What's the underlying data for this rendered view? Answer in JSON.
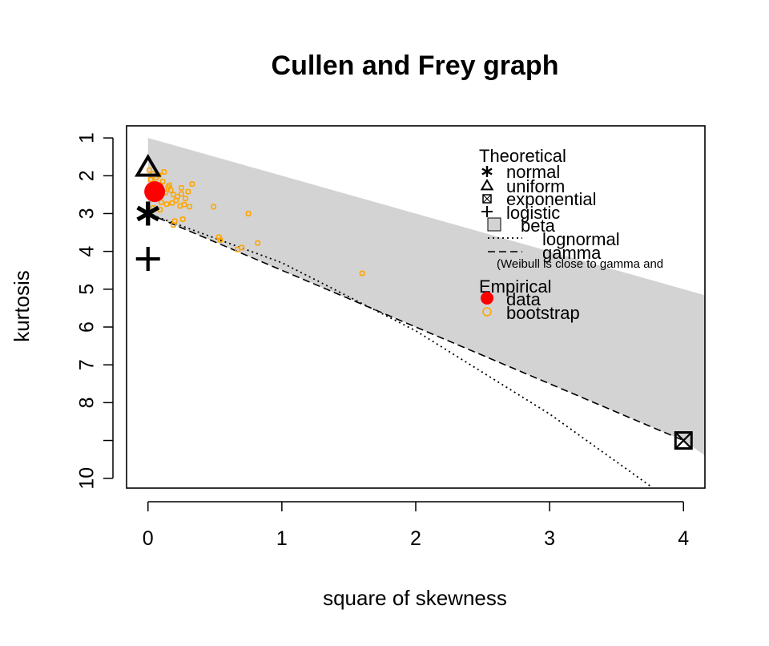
{
  "chart_data": {
    "type": "scatter",
    "title": "Cullen and Frey graph",
    "xlabel": "square of skewness",
    "ylabel": "kurtosis",
    "xlim": [
      -0.16,
      4.16
    ],
    "ylim": [
      10.26,
      0.68
    ],
    "y_axis_reversed": true,
    "x_ticks": [
      0,
      1,
      2,
      3,
      4
    ],
    "y_ticks": [
      1,
      2,
      3,
      4,
      5,
      6,
      7,
      8,
      9,
      10
    ],
    "y_tick_labels": [
      "1",
      "2",
      "3",
      "4",
      "5",
      "6",
      "7",
      "8",
      "",
      "10"
    ],
    "beta_region": {
      "color": "#d3d3d3",
      "upper_boundary": [
        [
          0,
          1
        ],
        [
          4.16,
          5.16
        ]
      ],
      "lower_boundary": [
        [
          0,
          3
        ],
        [
          4,
          9
        ],
        [
          4.16,
          9.4
        ]
      ]
    },
    "gamma_line": {
      "style": "dashed",
      "points": [
        [
          0,
          3
        ],
        [
          4,
          9
        ]
      ]
    },
    "lognormal_line": {
      "style": "dotted",
      "points": [
        [
          0,
          3
        ],
        [
          1,
          4.3
        ],
        [
          2,
          6.1
        ],
        [
          3,
          8.3
        ],
        [
          3.75,
          10.2
        ]
      ]
    },
    "theoretical_points": [
      {
        "name": "normal",
        "x": 0,
        "y": 3,
        "marker": "asterisk"
      },
      {
        "name": "uniform",
        "x": 0,
        "y": 1.8,
        "marker": "triangle"
      },
      {
        "name": "exponential",
        "x": 4,
        "y": 9,
        "marker": "boxed-x"
      },
      {
        "name": "logistic",
        "x": 0,
        "y": 4.2,
        "marker": "plus"
      }
    ],
    "observation": {
      "name": "data",
      "x": 0.05,
      "y": 2.42,
      "color": "#ff0000"
    },
    "bootstrap": {
      "name": "bootstrap",
      "color": "#ffa500",
      "points": [
        [
          0.01,
          1.85
        ],
        [
          0.04,
          1.95
        ],
        [
          0.06,
          2.05
        ],
        [
          0.08,
          1.98
        ],
        [
          0.12,
          1.9
        ],
        [
          0.02,
          2.1
        ],
        [
          0.05,
          2.2
        ],
        [
          0.09,
          2.25
        ],
        [
          0.11,
          2.15
        ],
        [
          0.15,
          2.3
        ],
        [
          0.03,
          2.35
        ],
        [
          0.07,
          2.4
        ],
        [
          0.13,
          2.45
        ],
        [
          0.17,
          2.38
        ],
        [
          0.19,
          2.5
        ],
        [
          0.22,
          2.55
        ],
        [
          0.25,
          2.48
        ],
        [
          0.28,
          2.6
        ],
        [
          0.3,
          2.42
        ],
        [
          0.33,
          2.22
        ],
        [
          0.06,
          2.6
        ],
        [
          0.1,
          2.7
        ],
        [
          0.14,
          2.75
        ],
        [
          0.18,
          2.72
        ],
        [
          0.21,
          2.65
        ],
        [
          0.24,
          2.8
        ],
        [
          0.27,
          2.76
        ],
        [
          0.31,
          2.82
        ],
        [
          0.04,
          2.85
        ],
        [
          0.09,
          2.9
        ],
        [
          0.2,
          3.2
        ],
        [
          0.26,
          3.15
        ],
        [
          0.19,
          3.3
        ],
        [
          0.25,
          2.32
        ],
        [
          0.16,
          2.25
        ],
        [
          0.49,
          2.82
        ],
        [
          0.75,
          3.0
        ],
        [
          0.53,
          3.62
        ],
        [
          0.54,
          3.7
        ],
        [
          0.67,
          3.95
        ],
        [
          0.7,
          3.9
        ],
        [
          0.82,
          3.78
        ],
        [
          1.6,
          4.58
        ]
      ]
    },
    "legend": {
      "position": "top-right",
      "theoretical_title": "Theoretical",
      "theoretical_entries": [
        "normal",
        "uniform",
        "exponential",
        "logistic",
        "beta",
        "lognormal",
        "gamma"
      ],
      "note": "(Weibull is close to gamma and",
      "empirical_title": "Empirical",
      "empirical_entries": [
        "data",
        "bootstrap"
      ]
    }
  }
}
